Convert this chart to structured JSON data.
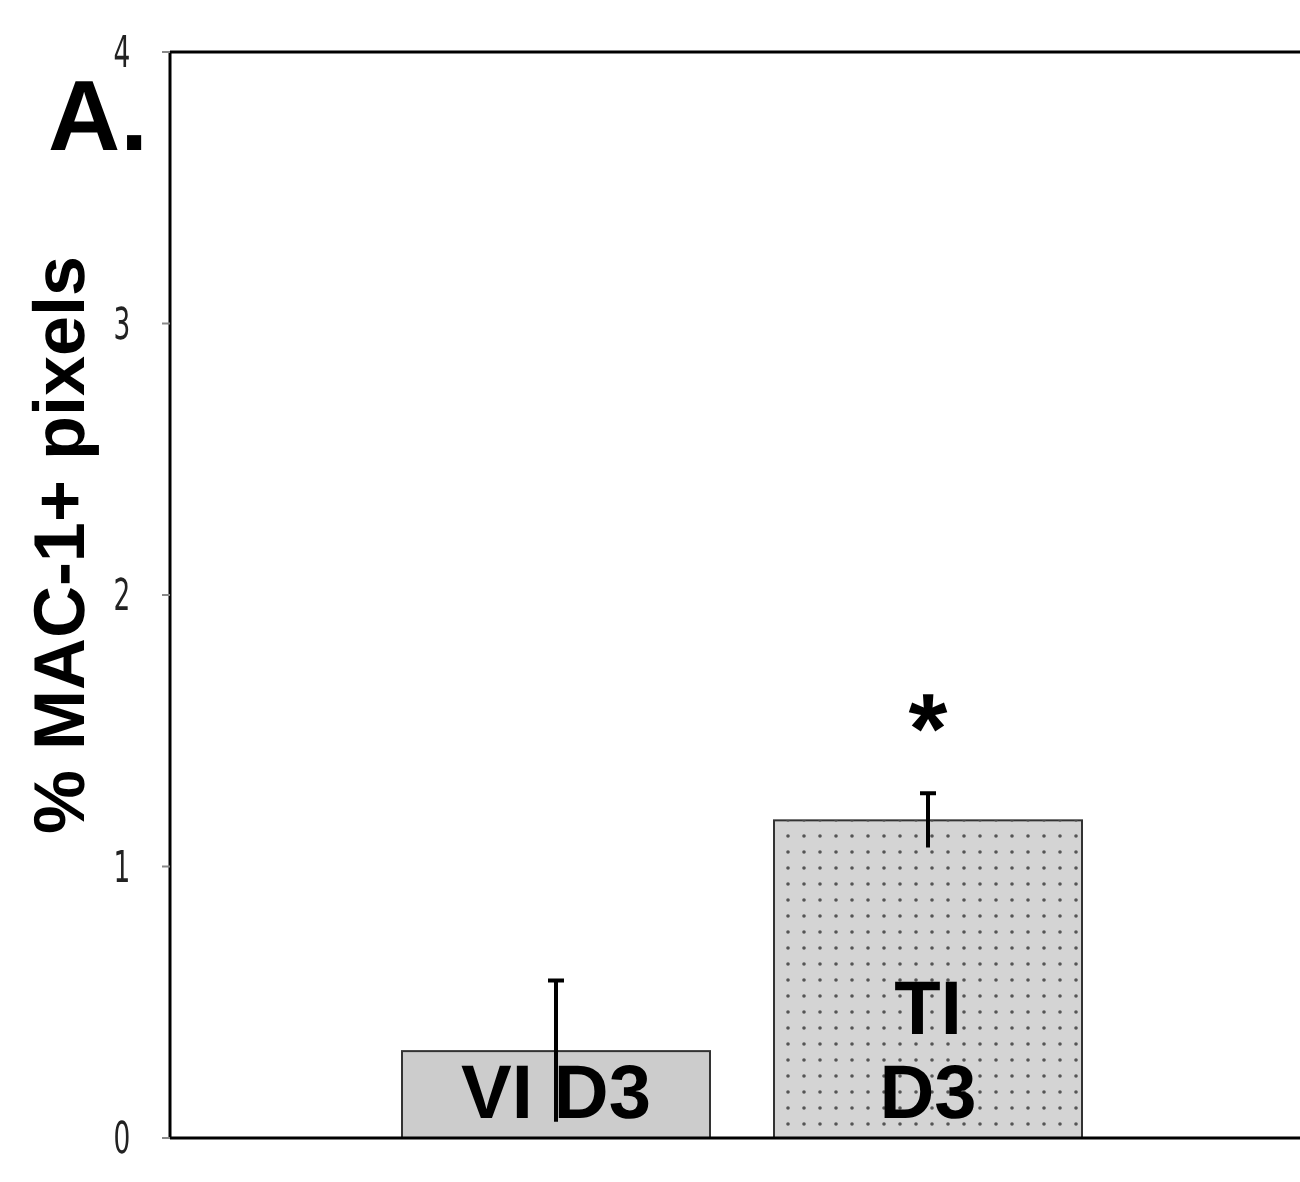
{
  "chart_data": {
    "type": "bar",
    "title": "A.",
    "ylabel": "% MAC-1+ pixels",
    "categories": [
      "VI D3",
      "TI\nD3"
    ],
    "values": [
      0.32,
      1.17
    ],
    "errors": [
      0.26,
      0.1
    ],
    "colors": [
      "#cccccc",
      "#d4d4d4"
    ],
    "ylim": [
      0,
      4
    ],
    "yticks": [
      0,
      1,
      2,
      3,
      4
    ],
    "grid": false,
    "annotations": [
      "*"
    ]
  }
}
